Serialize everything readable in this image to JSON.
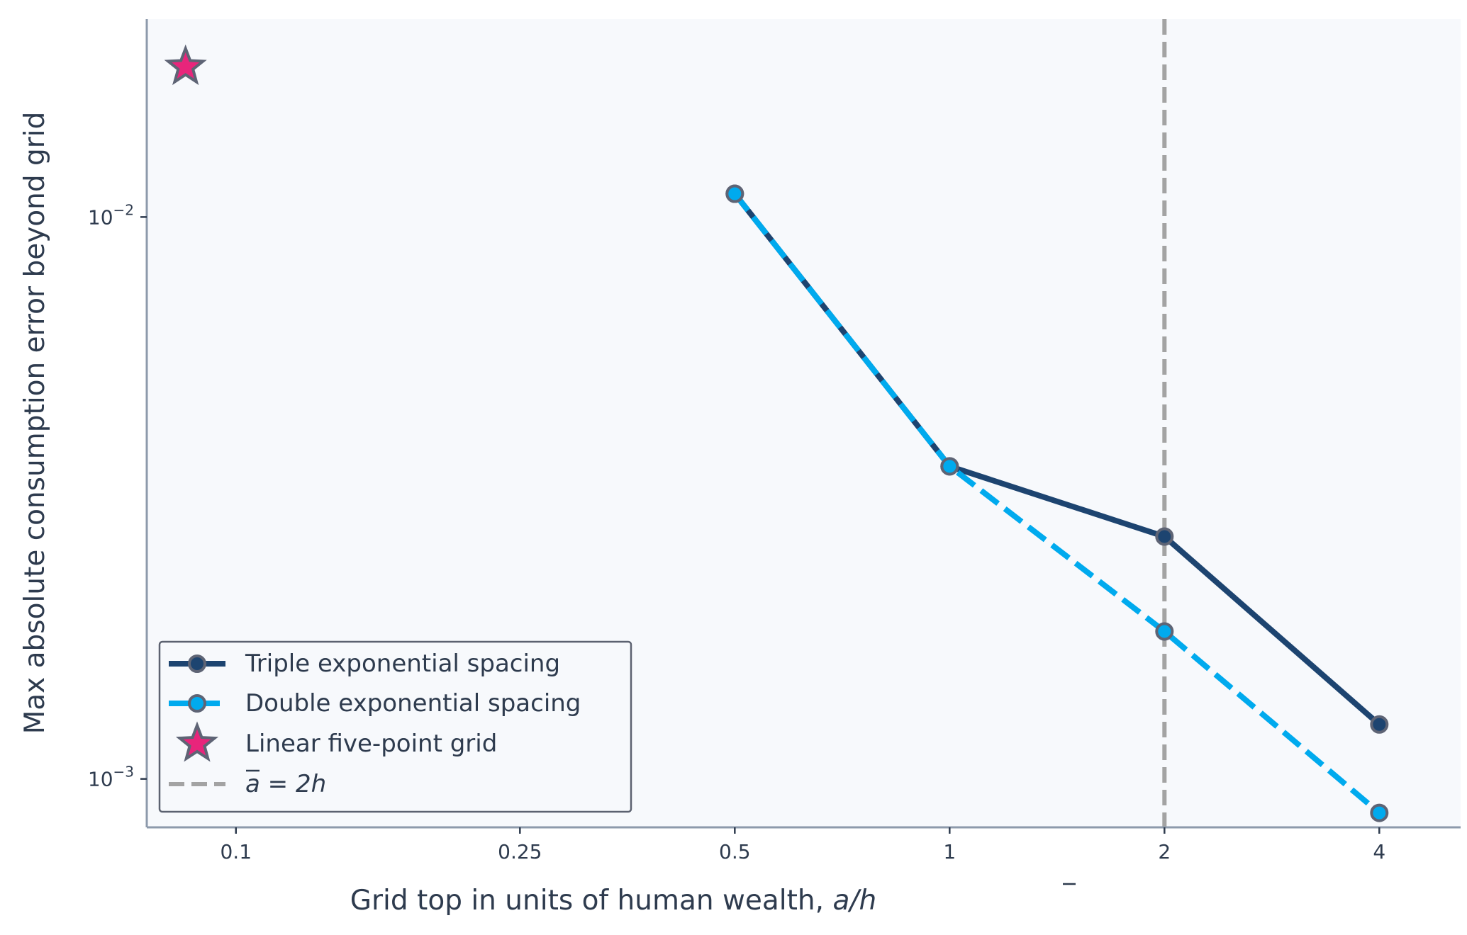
{
  "chart_data": {
    "type": "line",
    "xscale": "log",
    "yscale": "log",
    "xlim": [
      0.075,
      5.2
    ],
    "ylim": [
      0.00082,
      0.0225
    ],
    "xticks": [
      {
        "value": 0.1,
        "label": "0.1"
      },
      {
        "value": 0.25,
        "label": "0.25"
      },
      {
        "value": 0.5,
        "label": "0.5"
      },
      {
        "value": 1,
        "label": "1"
      },
      {
        "value": 2,
        "label": "2"
      },
      {
        "value": 4,
        "label": "4"
      }
    ],
    "yticks": [
      {
        "value": 0.01,
        "label_base": "10",
        "label_exp": "−2"
      },
      {
        "value": 0.001,
        "label_base": "10",
        "label_exp": "−3"
      }
    ],
    "xlabel": {
      "text": "Grid top in units of human wealth, ",
      "math": "a/h"
    },
    "ylabel": "Max absolute consumption error beyond grid",
    "grid": false,
    "legend_position": "lower-left",
    "series": [
      {
        "name": "Triple exponential spacing",
        "style": "solid",
        "color": "#1d4470",
        "marker_edge": "#5e6475",
        "x": [
          0.5,
          1,
          2,
          4
        ],
        "y": [
          0.011,
          0.0036,
          0.0027,
          0.00125
        ]
      },
      {
        "name": "Double exponential spacing",
        "style": "dashed",
        "color": "#00aaee",
        "marker_edge": "#5e6475",
        "x": [
          0.5,
          1,
          2,
          4
        ],
        "y": [
          0.011,
          0.0036,
          0.00183,
          0.00087
        ]
      },
      {
        "name": "Linear five-point grid",
        "style": "marker-star",
        "color": "#e8257b",
        "marker_edge": "#5e6475",
        "x": [
          0.085
        ],
        "y": [
          0.0185
        ]
      }
    ],
    "reference_line": {
      "label_math": "a = 2h",
      "x": 2,
      "color": "#a3a3a3",
      "style": "dashed"
    }
  },
  "colors": {
    "plot_background": "#f7f9fc",
    "axis_spine": "#8d9aab",
    "text": "#2e3b4e",
    "legend_border": "#5c6270"
  }
}
